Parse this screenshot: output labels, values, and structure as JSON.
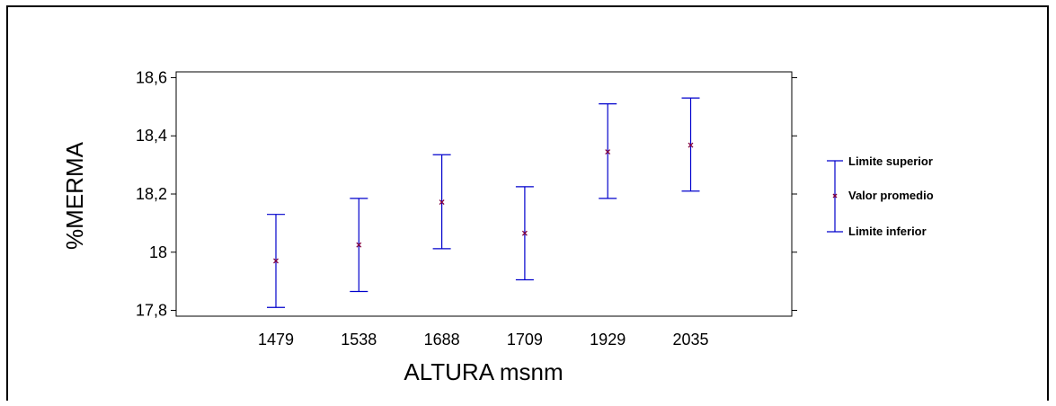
{
  "chart_data": {
    "type": "scatter",
    "title": "",
    "xlabel": "ALTURA msnm",
    "ylabel": "%MERMA",
    "categories": [
      "1479",
      "1538",
      "1688",
      "1709",
      "1929",
      "2035"
    ],
    "yticks": [
      "17,8",
      "18",
      "18,2",
      "18,4",
      "18,6"
    ],
    "ytick_values": [
      17.8,
      18.0,
      18.2,
      18.4,
      18.6
    ],
    "ylim": [
      17.78,
      18.62
    ],
    "series": [
      {
        "name": "Limite superior",
        "values": [
          18.13,
          18.185,
          18.335,
          18.225,
          18.51,
          18.53
        ]
      },
      {
        "name": "Valor promedio",
        "values": [
          17.97,
          18.025,
          18.172,
          18.065,
          18.345,
          18.368
        ]
      },
      {
        "name": "Limite inferior",
        "values": [
          17.81,
          17.865,
          18.012,
          17.905,
          18.185,
          18.21
        ]
      }
    ],
    "grid": false,
    "legend_position": "right",
    "colors": {
      "error_bar": "#0000cc",
      "mean_marker": "#800040"
    }
  }
}
